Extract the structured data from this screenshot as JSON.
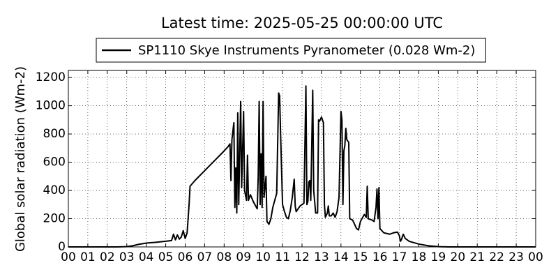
{
  "chart_data": {
    "type": "line",
    "title": "Latest time: 2025-05-25 00:00:00 UTC",
    "y_label": "Global solar radiation (Wm-2)",
    "legend": "top",
    "grid": true,
    "xlim": [
      0,
      24
    ],
    "ylim": [
      0,
      1250
    ],
    "yticks": [
      0,
      200,
      400,
      600,
      800,
      1000,
      1200
    ],
    "xticks": [
      {
        "value": 0,
        "label": "00"
      },
      {
        "value": 1,
        "label": "01"
      },
      {
        "value": 2,
        "label": "02"
      },
      {
        "value": 3,
        "label": "03"
      },
      {
        "value": 4,
        "label": "04"
      },
      {
        "value": 5,
        "label": "05"
      },
      {
        "value": 6,
        "label": "06"
      },
      {
        "value": 7,
        "label": "07"
      },
      {
        "value": 8,
        "label": "08"
      },
      {
        "value": 9,
        "label": "09"
      },
      {
        "value": 10,
        "label": "10"
      },
      {
        "value": 11,
        "label": "11"
      },
      {
        "value": 12,
        "label": "12"
      },
      {
        "value": 13,
        "label": "13"
      },
      {
        "value": 14,
        "label": "14"
      },
      {
        "value": 15,
        "label": "15"
      },
      {
        "value": 16,
        "label": "16"
      },
      {
        "value": 17,
        "label": "17"
      },
      {
        "value": 18,
        "label": "18"
      },
      {
        "value": 19,
        "label": "19"
      },
      {
        "value": 20,
        "label": "20"
      },
      {
        "value": 21,
        "label": "21"
      },
      {
        "value": 22,
        "label": "22"
      },
      {
        "value": 23,
        "label": "23"
      },
      {
        "value": 24,
        "label": "00"
      }
    ],
    "x": [
      0,
      2.5,
      3,
      3.3,
      3.6,
      4,
      4.5,
      5,
      5.3,
      5.4,
      5.5,
      5.6,
      5.7,
      5.8,
      5.9,
      6.0,
      6.1,
      6.2,
      6.25,
      6.5,
      7,
      7.5,
      8,
      8.2,
      8.3,
      8.35,
      8.4,
      8.5,
      8.55,
      8.6,
      8.65,
      8.7,
      8.75,
      8.85,
      8.9,
      9.0,
      9.05,
      9.15,
      9.2,
      9.25,
      9.35,
      9.5,
      9.7,
      9.75,
      9.8,
      9.85,
      9.9,
      9.95,
      10.0,
      10.05,
      10.15,
      10.2,
      10.3,
      10.4,
      10.5,
      10.6,
      10.7,
      10.8,
      10.85,
      10.9,
      11.0,
      11.1,
      11.2,
      11.3,
      11.4,
      11.5,
      11.6,
      11.65,
      11.7,
      11.8,
      11.9,
      12.0,
      12.1,
      12.2,
      12.25,
      12.3,
      12.35,
      12.4,
      12.45,
      12.55,
      12.6,
      12.7,
      12.8,
      12.85,
      12.9,
      13.0,
      13.1,
      13.15,
      13.2,
      13.3,
      13.35,
      13.4,
      13.5,
      13.6,
      13.7,
      13.8,
      13.9,
      14.0,
      14.05,
      14.1,
      14.15,
      14.2,
      14.25,
      14.3,
      14.4,
      14.45,
      14.6,
      14.8,
      14.9,
      15.0,
      15.2,
      15.3,
      15.35,
      15.4,
      15.6,
      15.7,
      15.8,
      15.85,
      15.9,
      15.95,
      16.0,
      16.2,
      16.5,
      16.7,
      16.9,
      17.0,
      17.05,
      17.1,
      17.2,
      17.3,
      17.5,
      18,
      18.5,
      19,
      19.5,
      24
    ],
    "series": [
      {
        "name": "SP1110 Skye Instruments Pyranometer (0.028 Wm-2)",
        "color": "#000000",
        "values": [
          0,
          0,
          2,
          8,
          18,
          27,
          33,
          40,
          45,
          90,
          50,
          85,
          55,
          70,
          115,
          60,
          100,
          300,
          430,
          470,
          540,
          610,
          680,
          710,
          730,
          470,
          760,
          880,
          280,
          560,
          240,
          950,
          300,
          1030,
          420,
          960,
          400,
          330,
          650,
          330,
          370,
          320,
          270,
          500,
          1030,
          300,
          660,
          280,
          1030,
          350,
          500,
          180,
          160,
          200,
          280,
          330,
          380,
          1090,
          1070,
          800,
          300,
          250,
          210,
          200,
          260,
          350,
          480,
          290,
          250,
          270,
          290,
          300,
          310,
          1140,
          300,
          320,
          460,
          470,
          330,
          1110,
          400,
          240,
          240,
          900,
          890,
          920,
          880,
          300,
          210,
          240,
          290,
          220,
          220,
          240,
          210,
          250,
          350,
          960,
          900,
          300,
          680,
          720,
          840,
          760,
          740,
          200,
          190,
          130,
          120,
          180,
          230,
          210,
          430,
          200,
          190,
          180,
          280,
          410,
          200,
          420,
          130,
          100,
          90,
          100,
          105,
          80,
          40,
          50,
          90,
          60,
          40,
          20,
          8,
          2,
          0,
          0
        ]
      }
    ]
  }
}
